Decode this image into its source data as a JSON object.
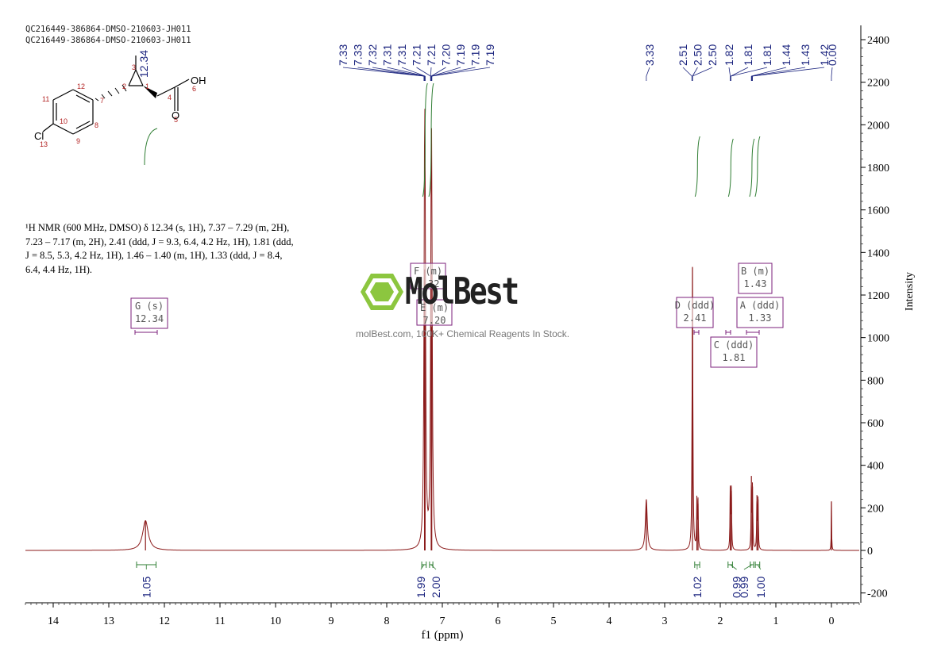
{
  "sample_id_line1": "QC216449-386864-DMSO-210603-JH011",
  "sample_id_line2": "QC216449-386864-DMSO-210603-JH011",
  "nmr_description": {
    "line1": "¹H NMR (600 MHz, DMSO) δ 12.34 (s, 1H), 7.37 – 7.29 (m, 2H),",
    "line2": "7.23 – 7.17 (m, 2H), 2.41 (ddd, J = 9.3, 6.4, 4.2 Hz, 1H), 1.81 (ddd,",
    "line3": "J = 8.5, 5.3, 4.2 Hz, 1H), 1.46 – 1.40 (m, 1H), 1.33 (ddd, J = 8.4,",
    "line4": "6.4, 4.4 Hz, 1H)."
  },
  "watermark": {
    "brand": "MolBest",
    "tagline": "molBest.com, 100K+ Chemical Reagents In Stock."
  },
  "structure": {
    "atoms": [
      "1",
      "2",
      "3",
      "4",
      "5",
      "6",
      "7",
      "8",
      "9",
      "10",
      "11",
      "12",
      "13"
    ],
    "labels": {
      "oh": "OH",
      "o": "O",
      "cl": "Cl"
    }
  },
  "colors": {
    "spectrum": "#8b1a1a",
    "peak_labels": "#1a237e",
    "integration": "#2e7d32",
    "multiplet_box": "#7b1f7b",
    "axis": "#000000",
    "logo": "#8cc63f"
  },
  "chart_data": {
    "type": "line",
    "xlabel": "f1 (ppm)",
    "ylabel": "Intensity",
    "xlim": [
      14.5,
      -0.5
    ],
    "ylim": [
      -250,
      2500
    ],
    "x_ticks": [
      14,
      13,
      12,
      11,
      10,
      9,
      8,
      7,
      6,
      5,
      4,
      3,
      2,
      1,
      0
    ],
    "y_ticks": [
      2400,
      2200,
      2000,
      1800,
      1600,
      1400,
      1200,
      1000,
      800,
      600,
      400,
      200,
      0,
      -200
    ],
    "peaks": [
      {
        "ppm": 12.34,
        "height": 140,
        "width": 0.06
      },
      {
        "ppm": 7.32,
        "height": 1320,
        "width": 0.012
      },
      {
        "ppm": 7.31,
        "height": 1100,
        "width": 0.012
      },
      {
        "ppm": 7.2,
        "height": 1310,
        "width": 0.012
      },
      {
        "ppm": 7.19,
        "height": 1050,
        "width": 0.012
      },
      {
        "ppm": 3.33,
        "height": 240,
        "width": 0.02
      },
      {
        "ppm": 2.5,
        "height": 1330,
        "width": 0.008
      },
      {
        "ppm": 2.42,
        "height": 240,
        "width": 0.006
      },
      {
        "ppm": 2.4,
        "height": 220,
        "width": 0.006
      },
      {
        "ppm": 1.82,
        "height": 300,
        "width": 0.006
      },
      {
        "ppm": 1.8,
        "height": 280,
        "width": 0.006
      },
      {
        "ppm": 1.44,
        "height": 350,
        "width": 0.006
      },
      {
        "ppm": 1.42,
        "height": 300,
        "width": 0.006
      },
      {
        "ppm": 1.34,
        "height": 260,
        "width": 0.006
      },
      {
        "ppm": 1.32,
        "height": 240,
        "width": 0.006
      },
      {
        "ppm": 0.0,
        "height": 230,
        "width": 0.004
      }
    ],
    "peak_labels": [
      {
        "text": "7.33",
        "ppm": 7.33
      },
      {
        "text": "7.33",
        "ppm": 7.33
      },
      {
        "text": "7.32",
        "ppm": 7.32
      },
      {
        "text": "7.31",
        "ppm": 7.31
      },
      {
        "text": "7.31",
        "ppm": 7.31
      },
      {
        "text": "7.21",
        "ppm": 7.21
      },
      {
        "text": "7.21",
        "ppm": 7.21
      },
      {
        "text": "7.20",
        "ppm": 7.2
      },
      {
        "text": "7.19",
        "ppm": 7.19
      },
      {
        "text": "7.19",
        "ppm": 7.19
      },
      {
        "text": "7.19",
        "ppm": 7.19
      },
      {
        "text": "3.33",
        "ppm": 3.33
      },
      {
        "text": "2.51",
        "ppm": 2.51
      },
      {
        "text": "2.50",
        "ppm": 2.5
      },
      {
        "text": "2.50",
        "ppm": 2.5
      },
      {
        "text": "1.82",
        "ppm": 1.82
      },
      {
        "text": "1.81",
        "ppm": 1.81
      },
      {
        "text": "1.81",
        "ppm": 1.81
      },
      {
        "text": "1.44",
        "ppm": 1.44
      },
      {
        "text": "1.43",
        "ppm": 1.43
      },
      {
        "text": "1.42",
        "ppm": 1.42
      },
      {
        "text": "0.00",
        "ppm": 0.0
      },
      {
        "text": "12.34",
        "ppm": 12.34
      }
    ],
    "integrals": [
      {
        "value": "1.05",
        "from": 12.5,
        "to": 12.15
      },
      {
        "value": "1.99",
        "from": 7.37,
        "to": 7.29
      },
      {
        "value": "2.00",
        "from": 7.23,
        "to": 7.17
      },
      {
        "value": "1.02",
        "from": 2.46,
        "to": 2.37
      },
      {
        "value": "0.99",
        "from": 1.86,
        "to": 1.78
      },
      {
        "value": "0.99",
        "from": 1.46,
        "to": 1.4
      },
      {
        "value": "1.00",
        "from": 1.37,
        "to": 1.29
      }
    ],
    "multiplets": [
      {
        "label": "G (s)",
        "shift": "12.34",
        "ppm": 12.34
      },
      {
        "label": "F (m)",
        "shift": "7.32",
        "ppm": 7.32
      },
      {
        "label": "E (m)",
        "shift": "7.20",
        "ppm": 7.2
      },
      {
        "label": "D (ddd)",
        "shift": "2.41",
        "ppm": 2.41
      },
      {
        "label": "C (ddd)",
        "shift": "1.81",
        "ppm": 1.81
      },
      {
        "label": "B (m)",
        "shift": "1.43",
        "ppm": 1.43
      },
      {
        "label": "A (ddd)",
        "shift": "1.33",
        "ppm": 1.33
      }
    ]
  }
}
